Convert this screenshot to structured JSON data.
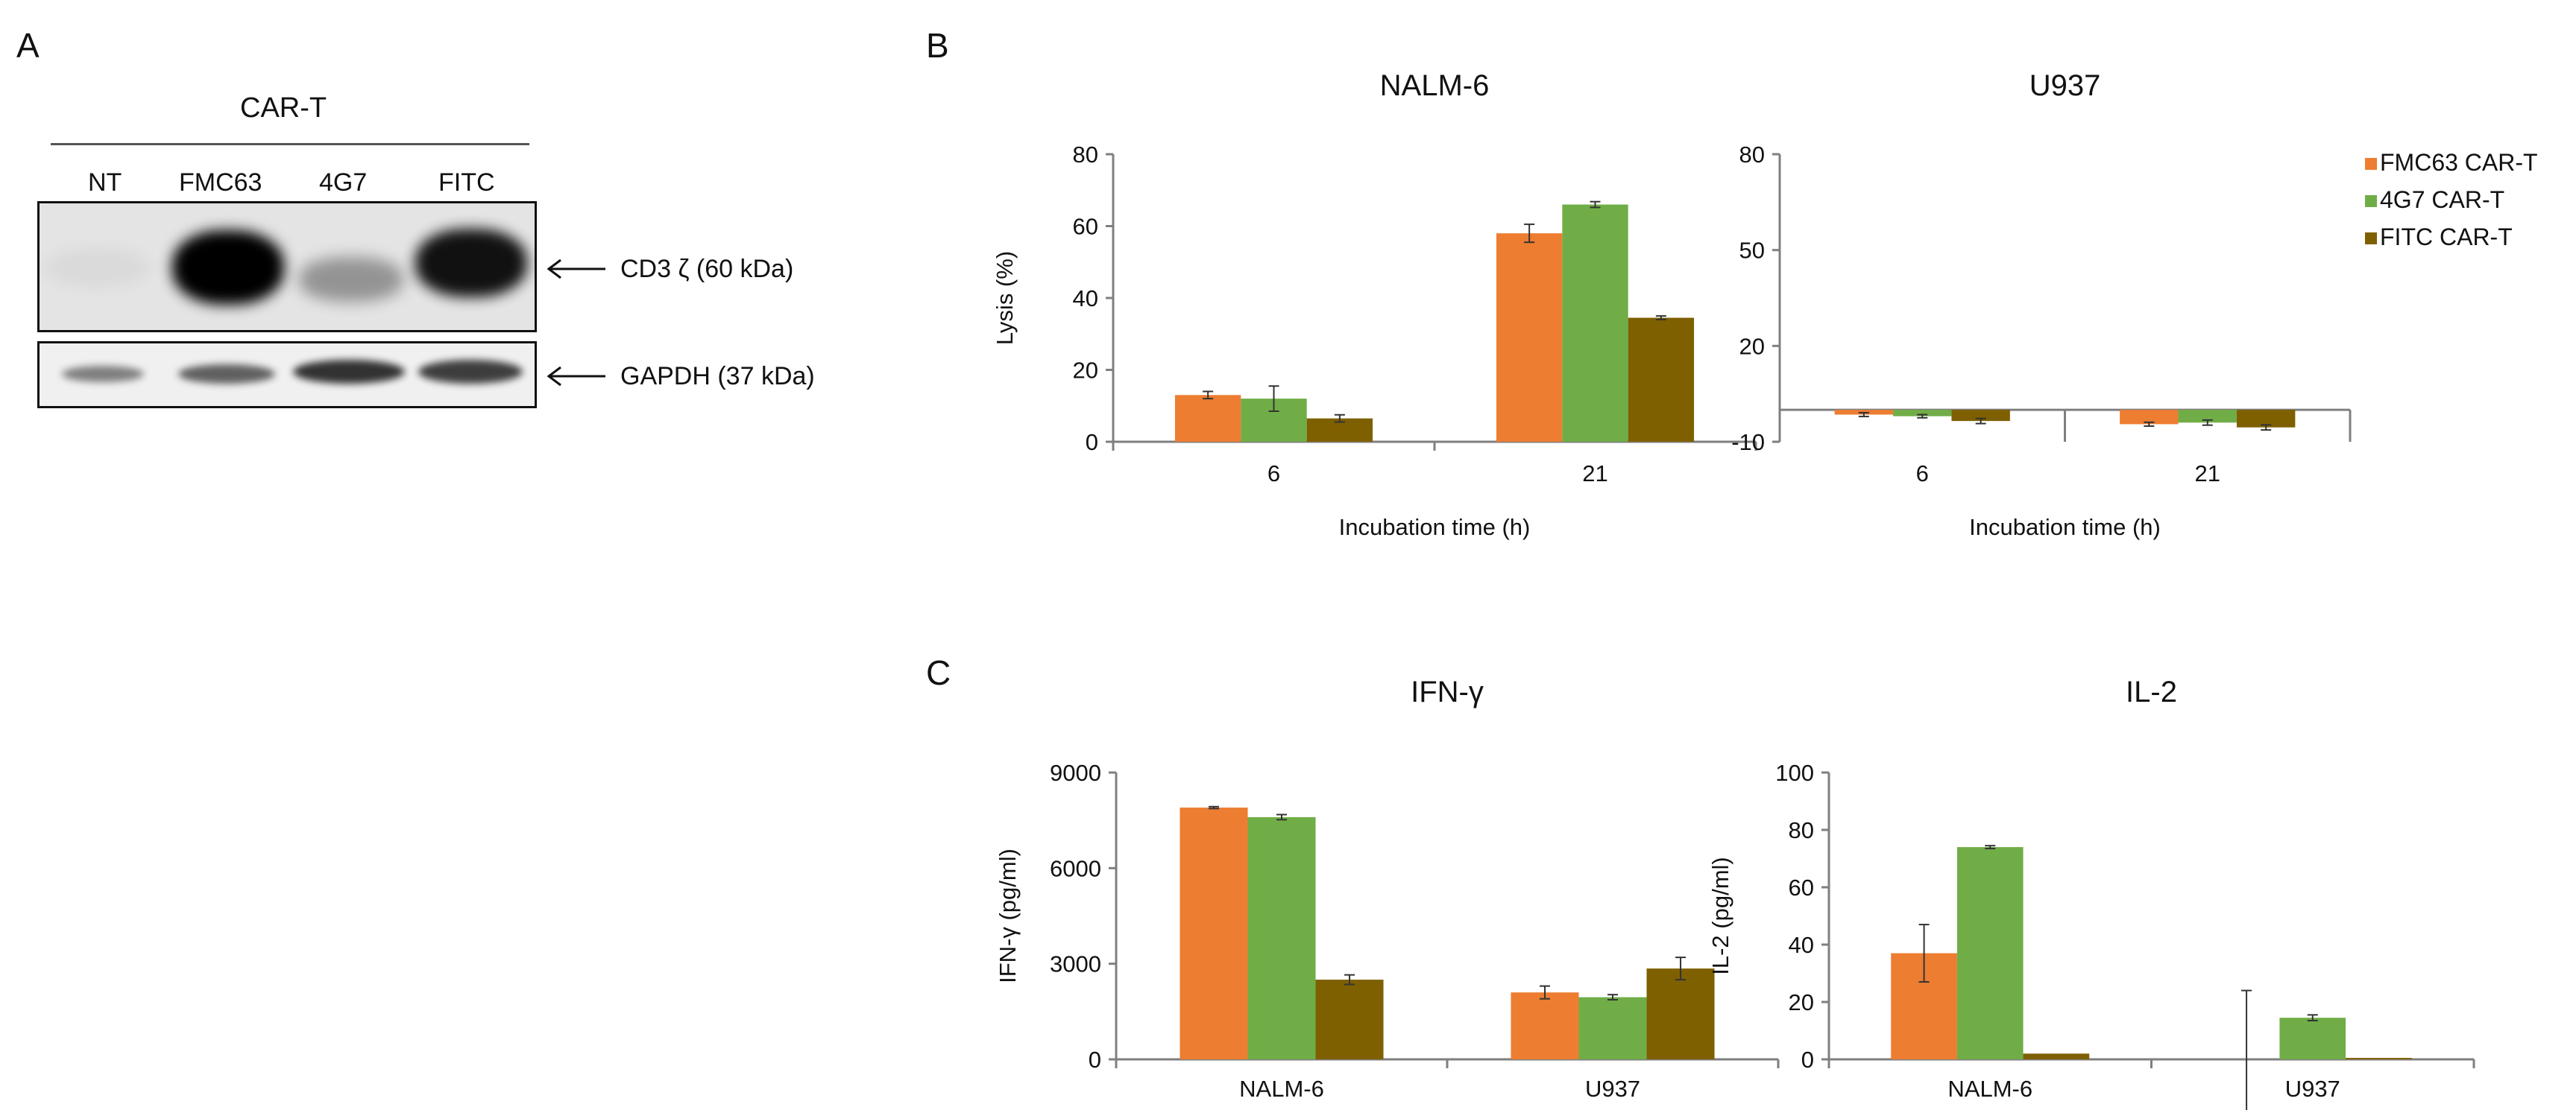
{
  "panels": {
    "A": "A",
    "B": "B",
    "C": "C"
  },
  "western_blot": {
    "group_label": "CAR-T",
    "lanes": [
      "NT",
      "FMC63",
      "4G7",
      "FITC"
    ],
    "band_labels": [
      "CD3 ζ (60 kDa)",
      "GAPDH (37 kDa)"
    ],
    "cd3z_intensity": [
      0.05,
      1.0,
      0.45,
      0.92
    ],
    "gapdh_intensity": [
      0.55,
      0.7,
      0.85,
      0.8
    ]
  },
  "legend": [
    "FMC63 CAR-T",
    "4G7 CAR-T",
    "FITC CAR-T"
  ],
  "colors": {
    "fmc63": "#ED7D31",
    "g47": "#70AD47",
    "fitc": "#7F6000",
    "axis": "#7f7f7f"
  },
  "chart_data": [
    {
      "id": "nalm6-lysis",
      "type": "bar",
      "title": "NALM-6",
      "xlabel": "Incubation time (h)",
      "ylabel": "Lysis (%)",
      "categories": [
        "6",
        "21"
      ],
      "ylim": [
        0,
        80
      ],
      "yticks": [
        0,
        20,
        40,
        60,
        80
      ],
      "series": [
        {
          "name": "FMC63 CAR-T",
          "values": [
            13,
            58
          ],
          "errors": [
            1,
            2.5
          ]
        },
        {
          "name": "4G7 CAR-T",
          "values": [
            12,
            66
          ],
          "errors": [
            3.5,
            0.8
          ]
        },
        {
          "name": "FITC CAR-T",
          "values": [
            6.5,
            34.5
          ],
          "errors": [
            1,
            0.5
          ]
        }
      ]
    },
    {
      "id": "u937-lysis",
      "type": "bar",
      "title": "U937",
      "xlabel": "Incubation time (h)",
      "ylabel": "",
      "categories": [
        "6",
        "21"
      ],
      "ylim": [
        -10,
        80
      ],
      "yticks": [
        -10,
        20,
        50,
        80
      ],
      "series": [
        {
          "name": "FMC63 CAR-T",
          "values": [
            -1.5,
            -4.5
          ],
          "errors": [
            0.6,
            0.6
          ]
        },
        {
          "name": "4G7 CAR-T",
          "values": [
            -2,
            -4
          ],
          "errors": [
            0.5,
            0.8
          ]
        },
        {
          "name": "FITC CAR-T",
          "values": [
            -3.5,
            -5.5
          ],
          "errors": [
            0.8,
            0.8
          ]
        }
      ]
    },
    {
      "id": "ifng",
      "type": "bar",
      "title": "IFN-γ",
      "xlabel": "",
      "ylabel": "IFN-γ (pg/ml)",
      "categories": [
        "NALM-6",
        "U937"
      ],
      "ylim": [
        0,
        9000
      ],
      "yticks": [
        0,
        3000,
        6000,
        9000
      ],
      "series": [
        {
          "name": "FMC63 CAR-T",
          "values": [
            7900,
            2100
          ],
          "errors": [
            30,
            200
          ]
        },
        {
          "name": "4G7 CAR-T",
          "values": [
            7600,
            1950
          ],
          "errors": [
            80,
            80
          ]
        },
        {
          "name": "FITC CAR-T",
          "values": [
            2500,
            2850
          ],
          "errors": [
            150,
            350
          ]
        }
      ]
    },
    {
      "id": "il2",
      "type": "bar",
      "title": "IL-2",
      "xlabel": "",
      "ylabel": "IL-2 (pg/ml)",
      "categories": [
        "NALM-6",
        "U937"
      ],
      "ylim": [
        0,
        100
      ],
      "yticks": [
        0,
        20,
        40,
        60,
        80,
        100
      ],
      "series": [
        {
          "name": "FMC63 CAR-T",
          "values": [
            37,
            0
          ],
          "errors": [
            10,
            24
          ]
        },
        {
          "name": "4G7 CAR-T",
          "values": [
            74,
            14.5
          ],
          "errors": [
            0.5,
            1
          ]
        },
        {
          "name": "FITC CAR-T",
          "values": [
            2,
            0.5
          ],
          "errors": [
            0,
            0
          ]
        }
      ]
    }
  ]
}
